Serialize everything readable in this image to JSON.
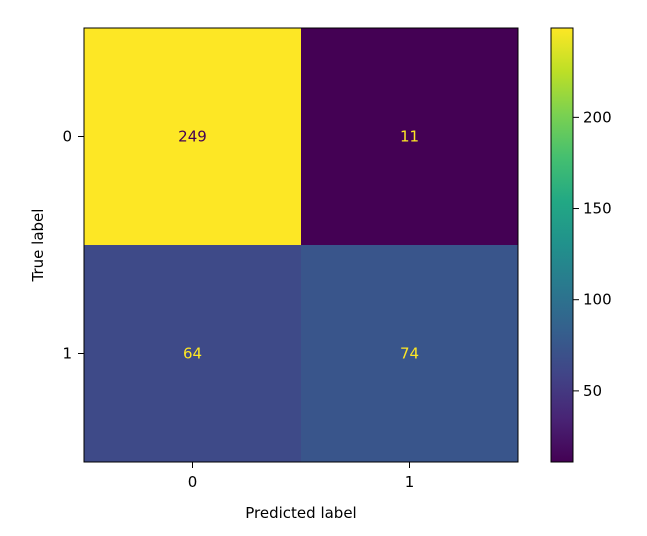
{
  "chart_data": {
    "type": "heatmap",
    "title": "",
    "xlabel": "Predicted label",
    "ylabel": "True label",
    "x_categories": [
      "0",
      "1"
    ],
    "y_categories": [
      "0",
      "1"
    ],
    "values": [
      [
        249,
        11
      ],
      [
        64,
        74
      ]
    ],
    "colormap": "viridis",
    "colorbar": {
      "min": 11,
      "max": 249,
      "ticks": [
        50,
        100,
        150,
        200
      ]
    },
    "cell_text_colors": {
      "on_dark": "#fde725",
      "on_light": "#440154"
    }
  }
}
